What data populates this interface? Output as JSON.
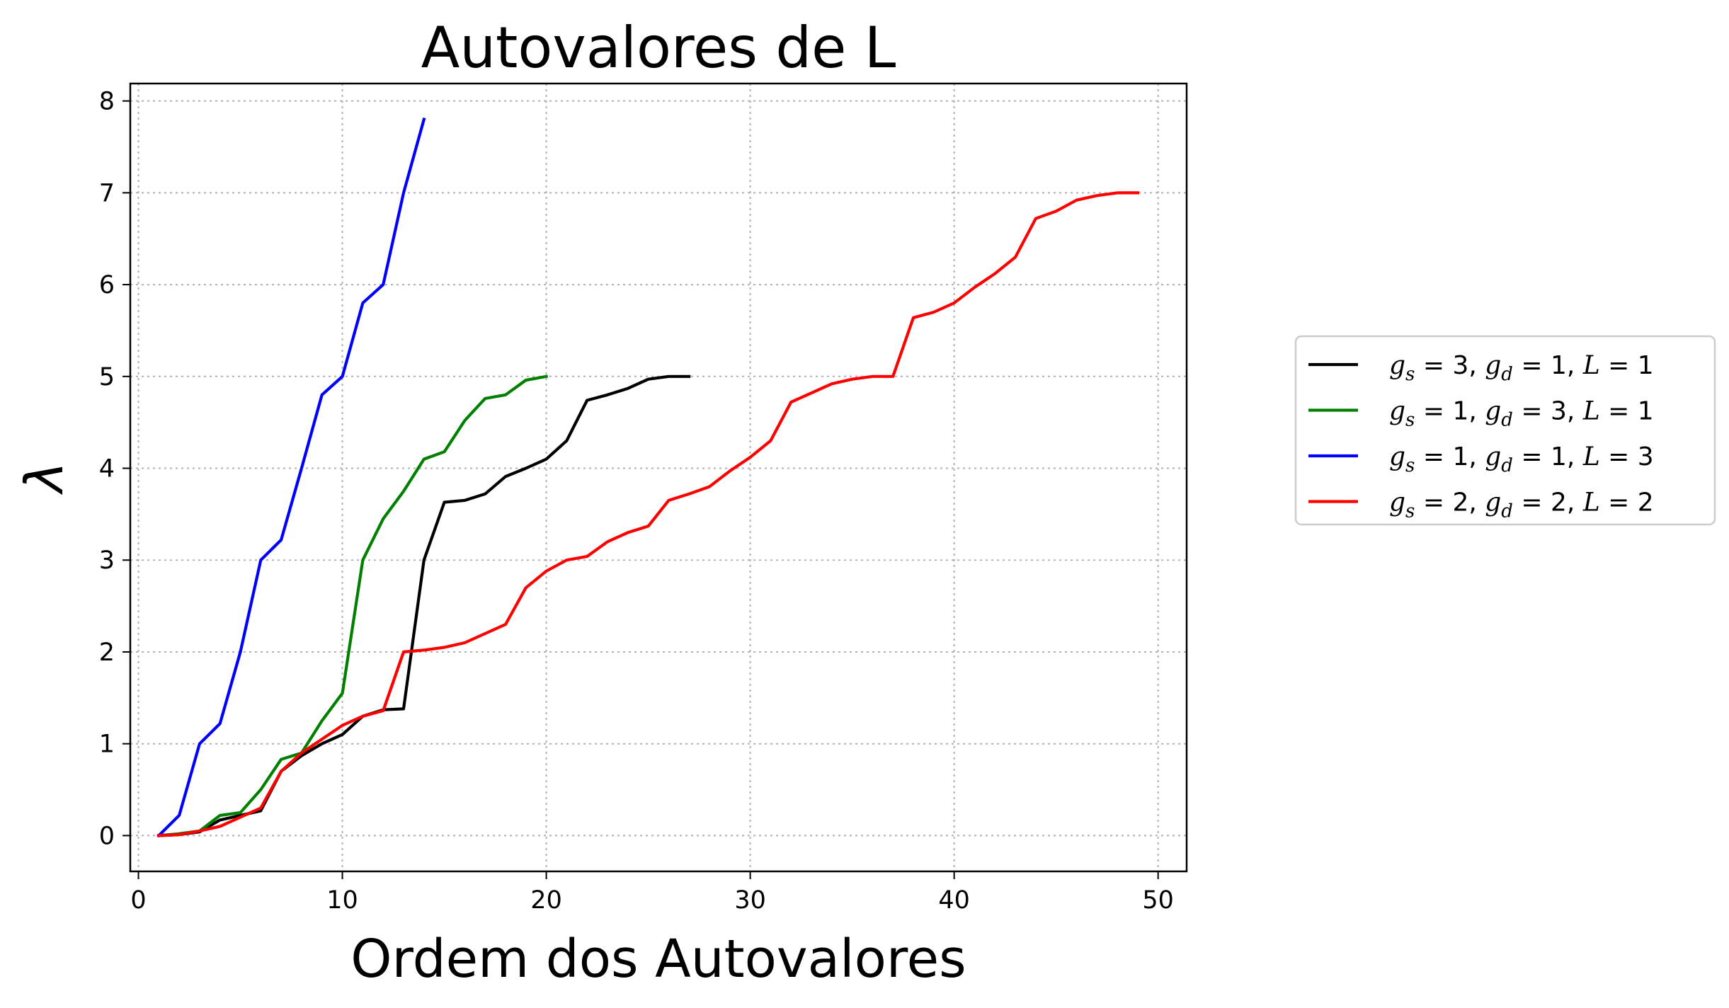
{
  "chart_data": {
    "type": "line",
    "title": "Autovalores de L",
    "xlabel": "Ordem dos Autovalores",
    "ylabel": "λ",
    "xlim": [
      -0.4,
      51.4
    ],
    "ylim": [
      -0.39,
      8.19
    ],
    "xticks": [
      0,
      10,
      20,
      30,
      40,
      50
    ],
    "yticks": [
      0,
      1,
      2,
      3,
      4,
      5,
      6,
      7,
      8
    ],
    "grid": true,
    "legend_position": "outside-right",
    "series": [
      {
        "name": "g_s = 3, g_d = 1, L = 1",
        "legend": {
          "g1": "3",
          "g2": "1",
          "l": "1"
        },
        "color": "#000000",
        "x": [
          1,
          2,
          3,
          4,
          5,
          6,
          7,
          8,
          9,
          10,
          11,
          12,
          13,
          14,
          15,
          16,
          17,
          18,
          19,
          20,
          21,
          22,
          23,
          24,
          25,
          26,
          27
        ],
        "y": [
          0,
          0.01,
          0.04,
          0.17,
          0.22,
          0.27,
          0.7,
          0.87,
          1.0,
          1.1,
          1.3,
          1.37,
          1.38,
          3.0,
          3.63,
          3.65,
          3.72,
          3.91,
          4.0,
          4.1,
          4.3,
          4.74,
          4.8,
          4.87,
          4.97,
          5.0,
          5.0
        ]
      },
      {
        "name": "g_s = 1, g_d = 3, L = 1",
        "legend": {
          "g1": "1",
          "g2": "3",
          "l": "1"
        },
        "color": "#008000",
        "x": [
          1,
          2,
          3,
          4,
          5,
          6,
          7,
          8,
          9,
          10,
          11,
          12,
          13,
          14,
          15,
          16,
          17,
          18,
          19,
          20
        ],
        "y": [
          0,
          0.02,
          0.05,
          0.22,
          0.25,
          0.5,
          0.83,
          0.9,
          1.25,
          1.55,
          3.0,
          3.45,
          3.75,
          4.1,
          4.18,
          4.52,
          4.76,
          4.8,
          4.96,
          5.0
        ]
      },
      {
        "name": "g_s = 1, g_d = 1, L = 3",
        "legend": {
          "g1": "1",
          "g2": "1",
          "l": "3"
        },
        "color": "#0000ff",
        "x": [
          1,
          2,
          3,
          4,
          5,
          6,
          7,
          8,
          9,
          10,
          11,
          12,
          13,
          14
        ],
        "y": [
          0,
          0.22,
          1.0,
          1.22,
          2.0,
          3.0,
          3.22,
          4.0,
          4.8,
          5.0,
          5.8,
          6.0,
          7.0,
          7.8
        ]
      },
      {
        "name": "g_s = 2, g_d = 2, L = 2",
        "legend": {
          "g1": "2",
          "g2": "2",
          "l": "2"
        },
        "color": "#ff0000",
        "x": [
          1,
          2,
          3,
          4,
          5,
          6,
          7,
          8,
          9,
          10,
          11,
          12,
          13,
          14,
          15,
          16,
          17,
          18,
          19,
          20,
          21,
          22,
          23,
          24,
          25,
          26,
          27,
          28,
          29,
          30,
          31,
          32,
          33,
          34,
          35,
          36,
          37,
          38,
          39,
          40,
          41,
          42,
          43,
          44,
          45,
          46,
          47,
          48,
          49
        ],
        "y": [
          0,
          0.01,
          0.05,
          0.1,
          0.2,
          0.3,
          0.7,
          0.9,
          1.05,
          1.2,
          1.3,
          1.36,
          2.0,
          2.02,
          2.05,
          2.1,
          2.2,
          2.3,
          2.7,
          2.88,
          3.0,
          3.04,
          3.2,
          3.3,
          3.37,
          3.65,
          3.72,
          3.8,
          3.97,
          4.12,
          4.3,
          4.72,
          4.82,
          4.92,
          4.97,
          5.0,
          5.0,
          5.64,
          5.7,
          5.8,
          5.97,
          6.12,
          6.3,
          6.72,
          6.8,
          6.92,
          6.97,
          7.0,
          7.0
        ]
      }
    ]
  }
}
